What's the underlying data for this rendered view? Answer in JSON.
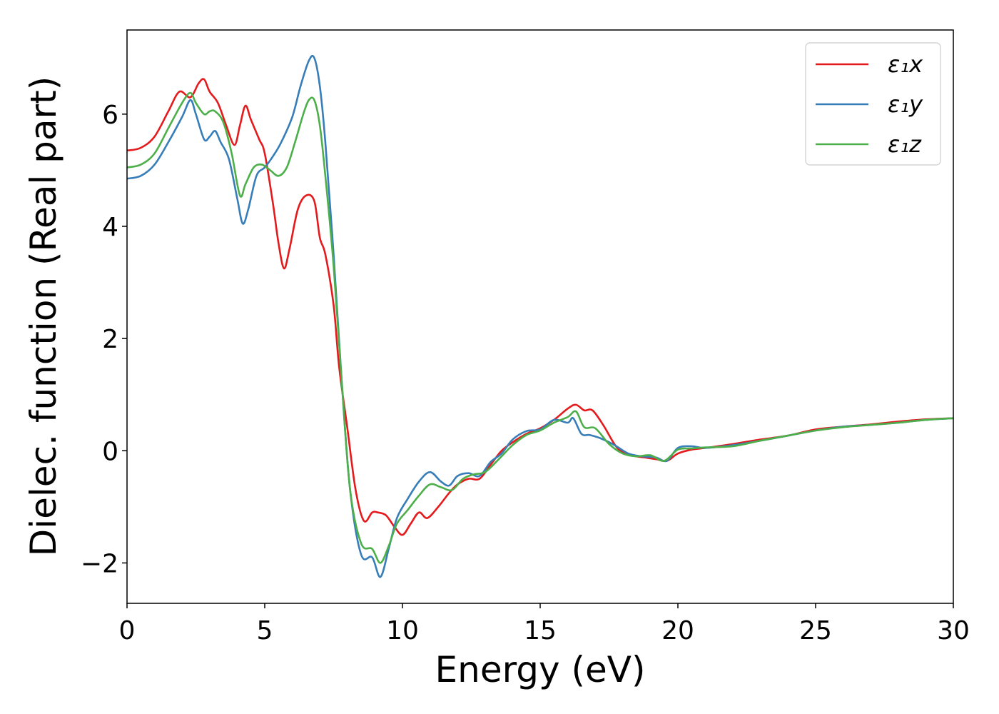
{
  "chart_data": {
    "type": "line",
    "xlabel": "Energy (eV)",
    "ylabel": "Dielec. function (Real part)",
    "xlim": [
      0,
      30
    ],
    "ylim": [
      -2.72,
      7.5
    ],
    "xticks": [
      0,
      5,
      10,
      15,
      20,
      25,
      30
    ],
    "xtick_labels": [
      "0",
      "5",
      "10",
      "15",
      "20",
      "25",
      "30"
    ],
    "yticks": [
      -2,
      0,
      2,
      4,
      6
    ],
    "ytick_labels": [
      "−2",
      "0",
      "2",
      "4",
      "6"
    ],
    "grid": false,
    "legend_position": "top-right",
    "series": [
      {
        "name": "ε₁x",
        "color": "#e41a1c",
        "x": [
          0,
          0.5,
          1.0,
          1.5,
          1.9,
          2.3,
          2.6,
          2.8,
          3.0,
          3.3,
          3.6,
          3.9,
          4.1,
          4.3,
          4.5,
          4.8,
          5.0,
          5.3,
          5.5,
          5.7,
          5.9,
          6.2,
          6.5,
          6.8,
          7.0,
          7.2,
          7.5,
          7.7,
          8.0,
          8.3,
          8.6,
          8.9,
          9.1,
          9.4,
          9.7,
          10.0,
          10.3,
          10.6,
          10.9,
          11.3,
          11.7,
          12.0,
          12.4,
          12.8,
          13.2,
          13.6,
          14.0,
          14.5,
          15.0,
          15.5,
          16.0,
          16.3,
          16.6,
          16.9,
          17.3,
          17.8,
          18.3,
          18.8,
          19.2,
          19.6,
          20.0,
          20.5,
          21.0,
          22.0,
          23.0,
          24.0,
          25.0,
          26.0,
          27.0,
          28.0,
          29.0,
          30.0
        ],
        "y": [
          5.35,
          5.4,
          5.6,
          6.05,
          6.4,
          6.3,
          6.55,
          6.62,
          6.4,
          6.2,
          5.8,
          5.45,
          5.8,
          6.15,
          5.9,
          5.55,
          5.3,
          4.4,
          3.7,
          3.25,
          3.6,
          4.3,
          4.55,
          4.45,
          3.8,
          3.5,
          2.6,
          1.5,
          0.4,
          -0.7,
          -1.25,
          -1.1,
          -1.1,
          -1.15,
          -1.35,
          -1.5,
          -1.3,
          -1.1,
          -1.2,
          -1.0,
          -0.75,
          -0.6,
          -0.5,
          -0.5,
          -0.25,
          0.0,
          0.15,
          0.3,
          0.4,
          0.55,
          0.75,
          0.82,
          0.72,
          0.72,
          0.45,
          0.05,
          -0.08,
          -0.12,
          -0.15,
          -0.18,
          -0.05,
          0.02,
          0.05,
          0.12,
          0.2,
          0.27,
          0.38,
          0.43,
          0.47,
          0.52,
          0.56,
          0.58
        ]
      },
      {
        "name": "ε₁y",
        "color": "#377eb8",
        "x": [
          0,
          0.5,
          1.0,
          1.5,
          2.0,
          2.3,
          2.5,
          2.8,
          3.0,
          3.2,
          3.4,
          3.7,
          4.0,
          4.2,
          4.4,
          4.7,
          5.0,
          5.3,
          5.6,
          6.0,
          6.3,
          6.6,
          6.8,
          7.0,
          7.2,
          7.5,
          7.8,
          8.1,
          8.5,
          8.9,
          9.2,
          9.5,
          9.8,
          10.2,
          10.6,
          11.0,
          11.4,
          11.7,
          12.0,
          12.4,
          12.8,
          13.2,
          13.6,
          14.0,
          14.5,
          15.0,
          15.5,
          16.0,
          16.2,
          16.5,
          16.8,
          17.2,
          17.7,
          18.2,
          18.7,
          19.2,
          19.6,
          20.0,
          20.5,
          21.0,
          22.0,
          23.0,
          24.0,
          25.0,
          26.0,
          27.0,
          28.0,
          29.0,
          30.0
        ],
        "y": [
          4.85,
          4.9,
          5.1,
          5.5,
          5.95,
          6.25,
          6.0,
          5.55,
          5.6,
          5.7,
          5.5,
          5.2,
          4.5,
          4.05,
          4.3,
          4.9,
          5.05,
          5.25,
          5.5,
          5.95,
          6.5,
          6.95,
          7.0,
          6.5,
          5.5,
          3.5,
          1.2,
          -0.7,
          -1.85,
          -1.9,
          -2.25,
          -1.75,
          -1.2,
          -0.85,
          -0.55,
          -0.38,
          -0.55,
          -0.62,
          -0.45,
          -0.4,
          -0.45,
          -0.2,
          -0.05,
          0.2,
          0.35,
          0.38,
          0.55,
          0.5,
          0.58,
          0.3,
          0.28,
          0.22,
          0.1,
          -0.05,
          -0.1,
          -0.12,
          -0.18,
          0.05,
          0.08,
          0.05,
          0.1,
          0.18,
          0.27,
          0.36,
          0.43,
          0.46,
          0.5,
          0.55,
          0.58
        ]
      },
      {
        "name": "ε₁z",
        "color": "#4daf4a",
        "x": [
          0,
          0.5,
          1.0,
          1.5,
          2.0,
          2.3,
          2.5,
          2.8,
          3.0,
          3.2,
          3.5,
          3.8,
          4.1,
          4.3,
          4.6,
          4.9,
          5.2,
          5.5,
          5.8,
          6.1,
          6.4,
          6.6,
          6.8,
          7.0,
          7.2,
          7.5,
          7.8,
          8.1,
          8.5,
          8.9,
          9.2,
          9.5,
          9.8,
          10.2,
          10.6,
          11.0,
          11.4,
          11.8,
          12.2,
          12.6,
          13.0,
          13.5,
          14.0,
          14.5,
          15.0,
          15.5,
          16.0,
          16.3,
          16.6,
          17.0,
          17.5,
          18.0,
          18.5,
          19.0,
          19.5,
          20.0,
          20.5,
          21.0,
          22.0,
          23.0,
          24.0,
          25.0,
          26.0,
          27.0,
          28.0,
          29.0,
          30.0
        ],
        "y": [
          5.05,
          5.1,
          5.3,
          5.75,
          6.2,
          6.38,
          6.2,
          6.0,
          6.05,
          6.05,
          5.85,
          5.3,
          4.55,
          4.75,
          5.05,
          5.1,
          5.0,
          4.9,
          5.05,
          5.5,
          6.0,
          6.25,
          6.25,
          5.8,
          4.9,
          3.3,
          1.2,
          -0.7,
          -1.65,
          -1.75,
          -2.0,
          -1.7,
          -1.3,
          -1.05,
          -0.8,
          -0.6,
          -0.65,
          -0.7,
          -0.5,
          -0.42,
          -0.38,
          -0.15,
          0.1,
          0.28,
          0.36,
          0.5,
          0.6,
          0.7,
          0.42,
          0.4,
          0.12,
          -0.05,
          -0.1,
          -0.08,
          -0.18,
          0.02,
          0.04,
          0.06,
          0.08,
          0.18,
          0.27,
          0.36,
          0.42,
          0.46,
          0.5,
          0.55,
          0.58
        ]
      }
    ]
  }
}
